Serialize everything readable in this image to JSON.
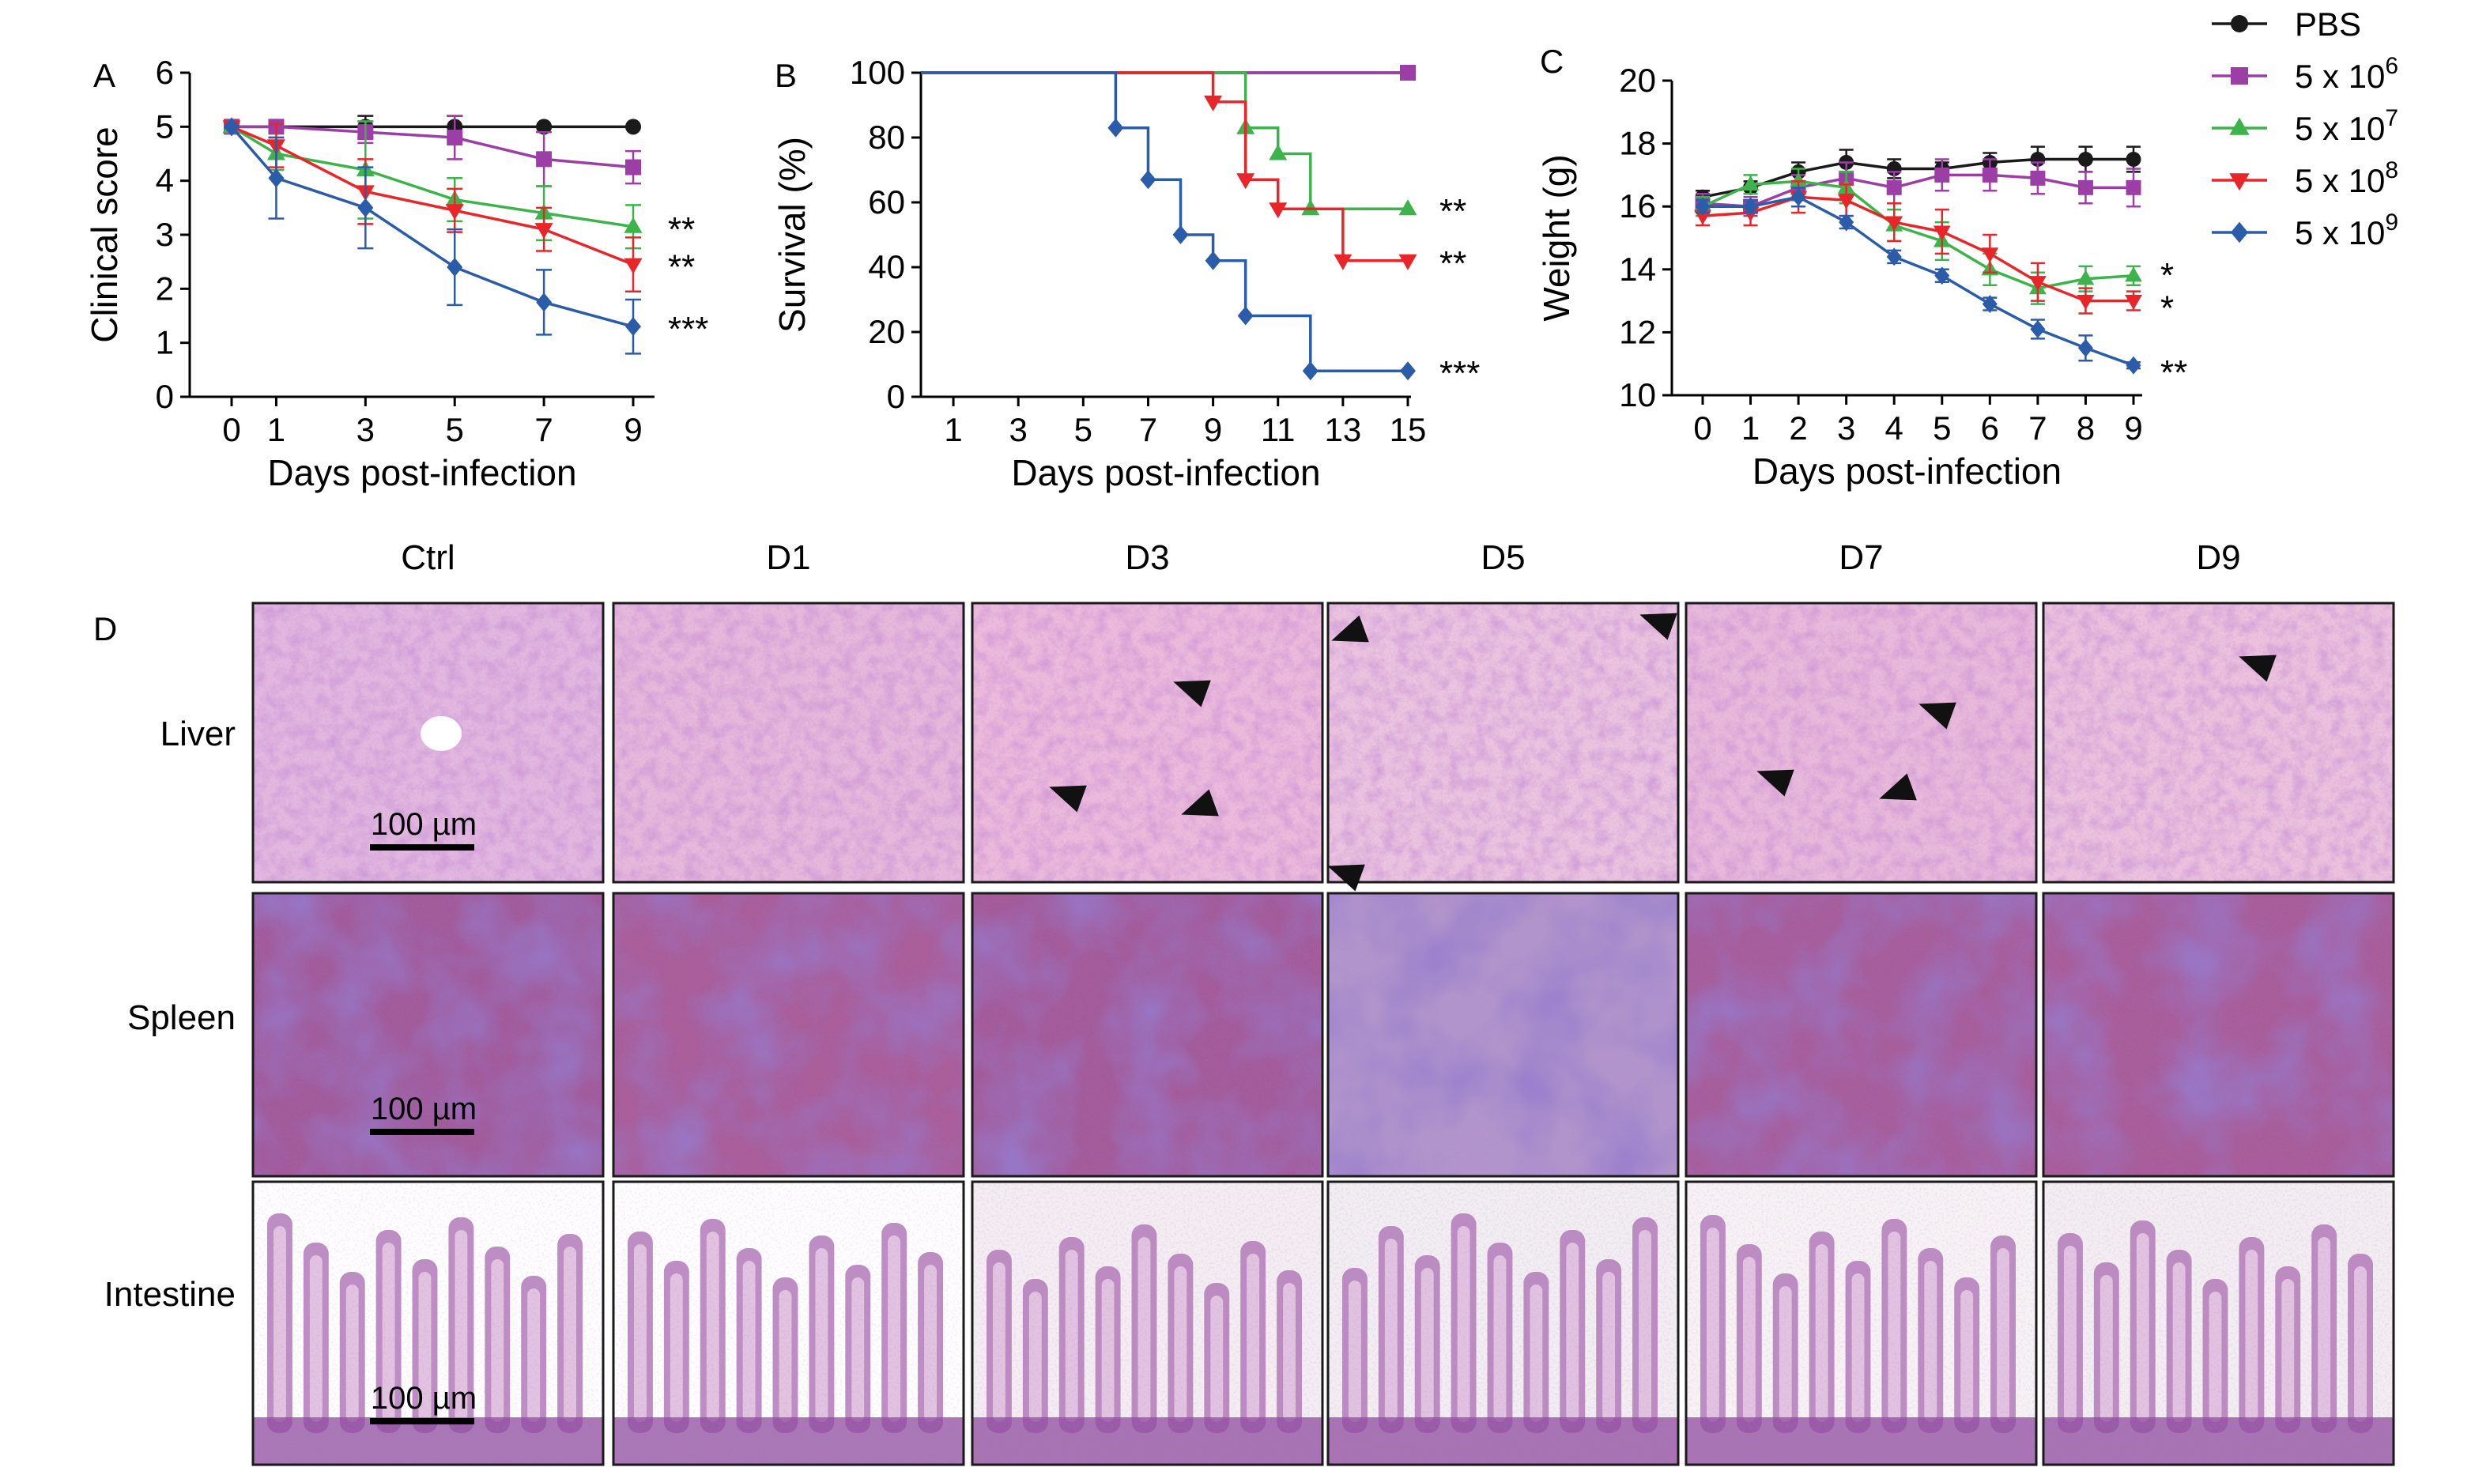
{
  "chart_data": [
    {
      "panel": "A",
      "type": "line",
      "xlabel": "Days post-infection",
      "ylabel": "Clinical score",
      "x": [
        0,
        1,
        3,
        5,
        7,
        9
      ],
      "xticks": [
        "0",
        "1",
        "3",
        "5",
        "7",
        "9"
      ],
      "ylim": [
        0,
        6
      ],
      "yticks": [
        "0",
        "1",
        "2",
        "3",
        "4",
        "5",
        "6"
      ],
      "series": [
        {
          "name": "PBS",
          "values": [
            5,
            5,
            5,
            5,
            5,
            5
          ],
          "err": [
            0,
            0,
            0.2,
            0.2,
            0,
            0
          ]
        },
        {
          "name": "5 x 10^6",
          "values": [
            5,
            5,
            4.9,
            4.8,
            4.4,
            4.25
          ],
          "err": [
            0,
            0,
            0.2,
            0.4,
            0.5,
            0.3
          ]
        },
        {
          "name": "5 x 10^7",
          "values": [
            5,
            4.5,
            4.2,
            3.65,
            3.4,
            3.15
          ],
          "err": [
            0,
            0.3,
            0.9,
            0.4,
            0.5,
            0.4
          ]
        },
        {
          "name": "5 x 10^8",
          "values": [
            5,
            4.65,
            3.8,
            3.45,
            3.1,
            2.45
          ],
          "err": [
            0,
            0.4,
            0.6,
            0.4,
            0.4,
            0.5
          ]
        },
        {
          "name": "5 x 10^9",
          "values": [
            5,
            4.05,
            3.5,
            2.4,
            1.75,
            1.3
          ],
          "err": [
            0,
            0.75,
            0.75,
            0.7,
            0.6,
            0.5
          ]
        }
      ],
      "significance": [
        {
          "series": "5 x 10^7",
          "text": "**"
        },
        {
          "series": "5 x 10^8",
          "text": "**"
        },
        {
          "series": "5 x 10^9",
          "text": "***"
        }
      ]
    },
    {
      "panel": "B",
      "type": "line",
      "step": true,
      "xlabel": "Days post-infection",
      "ylabel": "Survival (%)",
      "xlim": [
        0,
        15
      ],
      "xticks": [
        "1",
        "3",
        "5",
        "7",
        "9",
        "11",
        "13",
        "15"
      ],
      "ylim": [
        0,
        100
      ],
      "yticks": [
        "0",
        "20",
        "40",
        "60",
        "80",
        "100"
      ],
      "series": [
        {
          "name": "PBS",
          "x": [
            0,
            15
          ],
          "values": [
            100,
            100
          ]
        },
        {
          "name": "5 x 10^6",
          "x": [
            0,
            15
          ],
          "values": [
            100,
            100
          ],
          "markers_x": [
            15
          ],
          "markers_y": [
            100
          ]
        },
        {
          "name": "5 x 10^7",
          "x": [
            0,
            10,
            11,
            12,
            15
          ],
          "values": [
            100,
            83,
            75,
            58,
            58
          ],
          "markers_x": [
            10,
            11,
            12,
            15
          ],
          "markers_y": [
            83,
            75,
            58,
            58
          ]
        },
        {
          "name": "5 x 10^8",
          "x": [
            0,
            9,
            10,
            11,
            13,
            15
          ],
          "values": [
            100,
            91,
            67,
            58,
            42,
            42
          ],
          "markers_x": [
            9,
            10,
            11,
            13,
            15
          ],
          "markers_y": [
            91,
            67,
            58,
            42,
            42
          ]
        },
        {
          "name": "5 x 10^9",
          "x": [
            0,
            6,
            7,
            8,
            9,
            10,
            12,
            15
          ],
          "values": [
            100,
            83,
            67,
            50,
            42,
            25,
            8,
            8
          ],
          "markers_x": [
            6,
            7,
            8,
            9,
            10,
            12,
            15
          ],
          "markers_y": [
            83,
            67,
            50,
            42,
            25,
            8,
            8
          ]
        }
      ],
      "significance": [
        {
          "series": "5 x 10^7",
          "text": "**"
        },
        {
          "series": "5 x 10^8",
          "text": "**"
        },
        {
          "series": "5 x 10^9",
          "text": "***"
        }
      ]
    },
    {
      "panel": "C",
      "type": "line",
      "xlabel": "Days post-infection",
      "ylabel": "Weight (g)",
      "x": [
        0,
        1,
        2,
        3,
        4,
        5,
        6,
        7,
        8,
        9
      ],
      "xticks": [
        "0",
        "1",
        "2",
        "3",
        "4",
        "5",
        "6",
        "7",
        "8",
        "9"
      ],
      "ylim": [
        10,
        20
      ],
      "yticks": [
        "10",
        "12",
        "14",
        "16",
        "18",
        "20"
      ],
      "series": [
        {
          "name": "PBS",
          "values": [
            16.3,
            16.6,
            17.1,
            17.4,
            17.2,
            17.2,
            17.4,
            17.5,
            17.5,
            17.5
          ],
          "err": [
            0.2,
            0.2,
            0.3,
            0.4,
            0.3,
            0.2,
            0.3,
            0.4,
            0.4,
            0.4
          ]
        },
        {
          "name": "5 x 10^6",
          "values": [
            16.1,
            16.0,
            16.6,
            16.9,
            16.6,
            17.0,
            17.0,
            16.9,
            16.6,
            16.6
          ],
          "err": [
            0.3,
            0.3,
            0.4,
            0.5,
            0.5,
            0.5,
            0.5,
            0.5,
            0.5,
            0.6
          ]
        },
        {
          "name": "5 x 10^7",
          "values": [
            16.0,
            16.7,
            16.8,
            16.6,
            15.4,
            14.9,
            14.0,
            13.4,
            13.7,
            13.8
          ],
          "err": [
            0.3,
            0.3,
            0.4,
            0.5,
            0.5,
            0.6,
            0.5,
            0.5,
            0.4,
            0.3
          ]
        },
        {
          "name": "5 x 10^8",
          "values": [
            15.7,
            15.8,
            16.3,
            16.2,
            15.5,
            15.2,
            14.5,
            13.6,
            13.0,
            13.0
          ],
          "err": [
            0.3,
            0.4,
            0.5,
            0.5,
            0.6,
            0.7,
            0.6,
            0.6,
            0.4,
            0.3
          ]
        },
        {
          "name": "5 x 10^9",
          "values": [
            16.0,
            16.0,
            16.3,
            15.5,
            14.4,
            13.8,
            12.9,
            12.1,
            11.5,
            10.95
          ],
          "err": [
            0.2,
            0.2,
            0.3,
            0.2,
            0.2,
            0.2,
            0.2,
            0.3,
            0.4,
            0.1
          ]
        }
      ],
      "significance": [
        {
          "series": "5 x 10^7",
          "text": "*"
        },
        {
          "series": "5 x 10^8",
          "text": "*"
        },
        {
          "series": "5 x 10^9",
          "text": "**"
        }
      ]
    }
  ],
  "legend": {
    "placement": "top-right",
    "entries": [
      {
        "base": "PBS",
        "exp": "",
        "color": "#1a1a1a",
        "marker": "circle"
      },
      {
        "base": "5 x 10",
        "exp": "6",
        "color": "#9b3fa6",
        "marker": "square"
      },
      {
        "base": "5 x 10",
        "exp": "7",
        "color": "#3cb44b",
        "marker": "triangle-up"
      },
      {
        "base": "5 x 10",
        "exp": "8",
        "color": "#e8262a",
        "marker": "triangle-down"
      },
      {
        "base": "5 x 10",
        "exp": "9",
        "color": "#2a5caa",
        "marker": "diamond"
      }
    ]
  },
  "panel_labels": {
    "a": "A",
    "b": "B",
    "c": "C",
    "d": "D"
  },
  "histology": {
    "columns": [
      "Ctrl",
      "D1",
      "D3",
      "D5",
      "D7",
      "D9"
    ],
    "rows": [
      "Liver",
      "Spleen",
      "Intestine"
    ],
    "scale_bar": "100 µm"
  }
}
